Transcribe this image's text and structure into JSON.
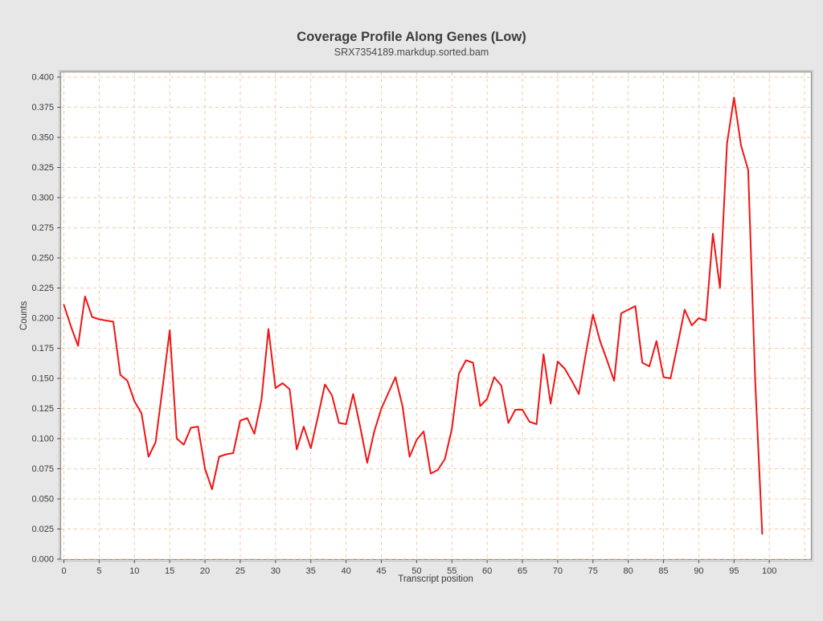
{
  "header": {
    "title": "Coverage Profile Along Genes (Low)",
    "subtitle": "SRX7354189.markdup.sorted.bam"
  },
  "colors": {
    "page_bg": "#e7e7e7",
    "plot_bg": "#ffffff",
    "grid": "#f6c9a0",
    "frame": "#8a8a8a",
    "frame_outer": "#c2c2c2",
    "tick_text": "#3a3a3a",
    "title_text": "#3c3c3c",
    "subtitle_text": "#4a4a4a",
    "line": "#f01414"
  },
  "chart_data": {
    "type": "line",
    "title": "Coverage Profile Along Genes (Low)",
    "subtitle": "SRX7354189.markdup.sorted.bam",
    "xlabel": "Transcript position",
    "ylabel": "Counts",
    "legend_position": "none",
    "grid": true,
    "xlim": [
      -0.4,
      105.9
    ],
    "ylim": [
      0,
      0.404
    ],
    "x_ticks": [
      0,
      5,
      10,
      15,
      20,
      25,
      30,
      35,
      40,
      45,
      50,
      55,
      60,
      65,
      70,
      75,
      80,
      85,
      90,
      95,
      100
    ],
    "x_gridlines": [
      0,
      5,
      10,
      15,
      20,
      25,
      30,
      35,
      40,
      45,
      50,
      55,
      60,
      65,
      70,
      75,
      80,
      85,
      90,
      95,
      100,
      105
    ],
    "y_ticks": [
      0.0,
      0.025,
      0.05,
      0.075,
      0.1,
      0.125,
      0.15,
      0.175,
      0.2,
      0.225,
      0.25,
      0.275,
      0.3,
      0.325,
      0.35,
      0.375,
      0.4
    ],
    "y_tick_decimals": 3,
    "x": [
      0,
      1,
      2,
      3,
      4,
      5,
      6,
      7,
      8,
      9,
      10,
      11,
      12,
      13,
      14,
      15,
      16,
      17,
      18,
      19,
      20,
      21,
      22,
      23,
      24,
      25,
      26,
      27,
      28,
      29,
      30,
      31,
      32,
      33,
      34,
      35,
      36,
      37,
      38,
      39,
      40,
      41,
      42,
      43,
      44,
      45,
      46,
      47,
      48,
      49,
      50,
      51,
      52,
      53,
      54,
      55,
      56,
      57,
      58,
      59,
      60,
      61,
      62,
      63,
      64,
      65,
      66,
      67,
      68,
      69,
      70,
      71,
      72,
      73,
      74,
      75,
      76,
      77,
      78,
      79,
      80,
      81,
      82,
      83,
      84,
      85,
      86,
      87,
      88,
      89,
      90,
      91,
      92,
      93,
      94,
      95,
      96,
      97,
      98,
      99
    ],
    "series": [
      {
        "name": "SRX7354189.markdup.sorted.bam",
        "color": "#f01414",
        "values": [
          0.211,
          0.193,
          0.177,
          0.218,
          0.201,
          0.199,
          0.198,
          0.197,
          0.153,
          0.148,
          0.131,
          0.121,
          0.085,
          0.097,
          0.143,
          0.19,
          0.1,
          0.095,
          0.109,
          0.11,
          0.075,
          0.058,
          0.085,
          0.087,
          0.088,
          0.115,
          0.117,
          0.104,
          0.132,
          0.191,
          0.142,
          0.146,
          0.141,
          0.091,
          0.11,
          0.092,
          0.118,
          0.145,
          0.136,
          0.113,
          0.112,
          0.137,
          0.11,
          0.08,
          0.106,
          0.125,
          0.138,
          0.151,
          0.127,
          0.085,
          0.099,
          0.106,
          0.071,
          0.074,
          0.083,
          0.108,
          0.154,
          0.165,
          0.163,
          0.127,
          0.133,
          0.151,
          0.144,
          0.113,
          0.124,
          0.124,
          0.114,
          0.112,
          0.17,
          0.129,
          0.164,
          0.158,
          0.148,
          0.137,
          0.171,
          0.203,
          0.181,
          0.165,
          0.148,
          0.204,
          0.207,
          0.21,
          0.163,
          0.16,
          0.181,
          0.151,
          0.15,
          0.178,
          0.207,
          0.194,
          0.2,
          0.198,
          0.27,
          0.225,
          0.345,
          0.383,
          0.343,
          0.323,
          0.147,
          0.021
        ]
      }
    ]
  }
}
